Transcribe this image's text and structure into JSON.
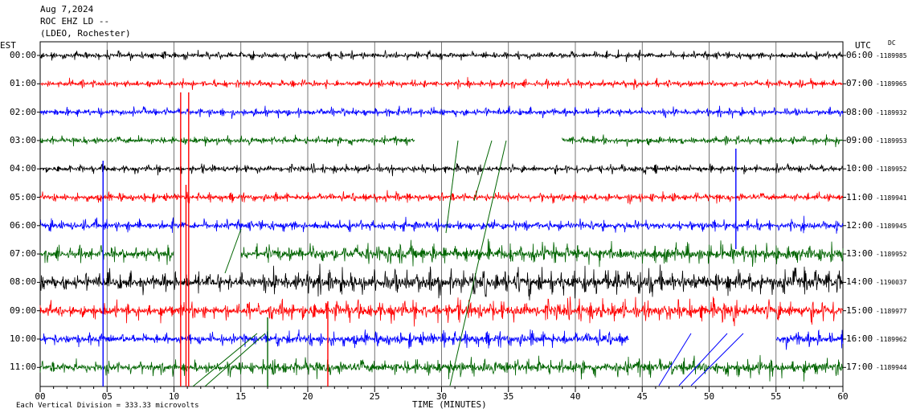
{
  "header": {
    "date": "Aug 7,2024",
    "station": "ROC EHZ LD --",
    "network": "(LDEO, Rochester)"
  },
  "left_axis_title": "EST",
  "right_axis_title": "UTC",
  "dc_label": "DC",
  "x_axis_title": "TIME (MINUTES)",
  "scale_note": "Each Vertical Division = 333.33 microvolts",
  "chart_data": {
    "type": "line",
    "title": "",
    "xlabel": "TIME (MINUTES)",
    "ylabel": "",
    "xlim": [
      0,
      60
    ],
    "x_ticks": [
      "00",
      "05",
      "10",
      "15",
      "20",
      "25",
      "30",
      "35",
      "40",
      "45",
      "50",
      "55",
      "60"
    ],
    "grid": true,
    "series_colors": [
      "#000000",
      "#ff0000",
      "#0000ff",
      "#006400"
    ],
    "rows": [
      {
        "est": "00:00",
        "utc": "06:00",
        "dc": "-1189985",
        "color": "#000000",
        "amp": 0.55,
        "gaps": []
      },
      {
        "est": "01:00",
        "utc": "07:00",
        "dc": "-1189965",
        "color": "#ff0000",
        "amp": 0.55,
        "gaps": []
      },
      {
        "est": "02:00",
        "utc": "08:00",
        "dc": "-1189932",
        "color": "#0000ff",
        "amp": 0.6,
        "gaps": []
      },
      {
        "est": "03:00",
        "utc": "09:00",
        "dc": "-1189953",
        "color": "#006400",
        "amp": 0.6,
        "gaps": [
          [
            28.0,
            39.0
          ]
        ]
      },
      {
        "est": "04:00",
        "utc": "10:00",
        "dc": "-1189952",
        "color": "#000000",
        "amp": 0.6,
        "gaps": []
      },
      {
        "est": "05:00",
        "utc": "11:00",
        "dc": "-1189941",
        "color": "#ff0000",
        "amp": 0.65,
        "gaps": []
      },
      {
        "est": "06:00",
        "utc": "12:00",
        "dc": "-1189945",
        "color": "#0000ff",
        "amp": 0.8,
        "gaps": []
      },
      {
        "est": "07:00",
        "utc": "13:00",
        "dc": "-1189952",
        "color": "#006400",
        "amp": 1.0,
        "gaps": [
          [
            10.0,
            15.0
          ]
        ]
      },
      {
        "est": "08:00",
        "utc": "14:00",
        "dc": "-1190037",
        "color": "#000000",
        "amp": 1.3,
        "gaps": []
      },
      {
        "est": "09:00",
        "utc": "15:00",
        "dc": "-1189977",
        "color": "#ff0000",
        "amp": 1.1,
        "gaps": []
      },
      {
        "est": "10:00",
        "utc": "16:00",
        "dc": "-1189962",
        "color": "#0000ff",
        "amp": 0.8,
        "gaps": [
          [
            44.0,
            55.0
          ]
        ]
      },
      {
        "est": "11:00",
        "utc": "17:00",
        "dc": "-1189944",
        "color": "#006400",
        "amp": 0.9,
        "gaps": []
      }
    ]
  }
}
